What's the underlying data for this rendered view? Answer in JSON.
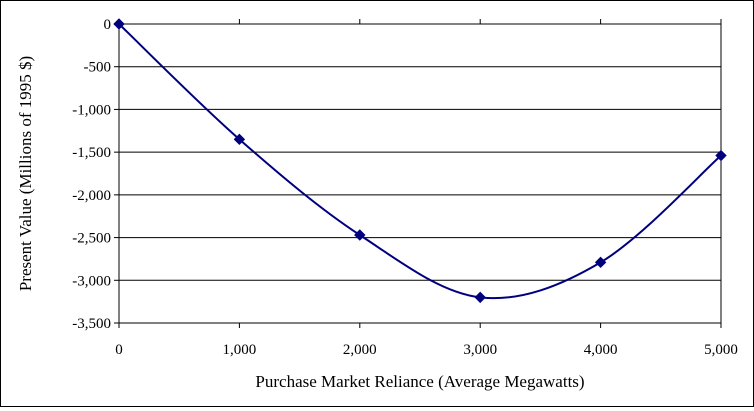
{
  "chart_data": {
    "type": "line",
    "title": "",
    "xlabel": "Purchase Market Reliance (Average Megawatts)",
    "ylabel": "Present Value (Millions of 1995 $)",
    "xlim": [
      0,
      5000
    ],
    "ylim": [
      -3500,
      0
    ],
    "x_ticks": [
      0,
      1000,
      2000,
      3000,
      4000,
      5000
    ],
    "x_tick_labels": [
      "0",
      "1,000",
      "2,000",
      "3,000",
      "4,000",
      "5,000"
    ],
    "y_ticks": [
      0,
      -500,
      -1000,
      -1500,
      -2000,
      -2500,
      -3000,
      -3500
    ],
    "y_tick_labels": [
      "0",
      "-500",
      "-1,000",
      "-1,500",
      "-2,000",
      "-2,500",
      "-3,000",
      "-3,500"
    ],
    "grid": "horizontal",
    "legend": "none",
    "series": [
      {
        "x": [
          0,
          1000,
          2000,
          3000,
          4000,
          5000
        ],
        "values": [
          0,
          -1350,
          -2470,
          -3200,
          -2790,
          -1540
        ],
        "color": "#00007f",
        "marker": "diamond"
      }
    ]
  }
}
